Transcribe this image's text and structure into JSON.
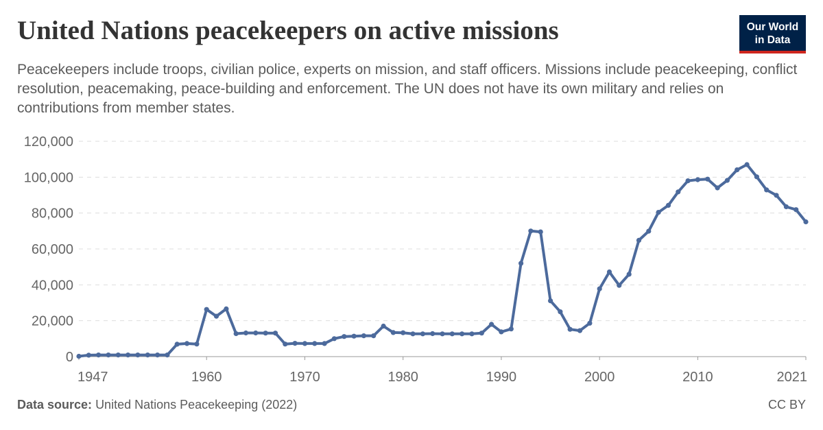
{
  "header": {
    "title": "United Nations peacekeepers on active missions",
    "subtitle": "Peacekeepers include troops, civilian police, experts on mission, and staff officers. Missions include peacekeeping, conflict resolution, peacemaking, peace-building and enforcement. The UN does not have its own military and relies on contributions from member states."
  },
  "logo": {
    "line1": "Our World",
    "line2": "in Data",
    "background_color": "#002147",
    "accent_color": "#ce261e"
  },
  "footer": {
    "source_label": "Data source:",
    "source_text": "United Nations Peacekeeping (2022)",
    "license": "CC BY"
  },
  "chart_data": {
    "type": "line",
    "title": "United Nations peacekeepers on active missions",
    "xlabel": "",
    "ylabel": "",
    "xlim": [
      1947,
      2021
    ],
    "ylim": [
      0,
      120000
    ],
    "yticks": [
      0,
      20000,
      40000,
      60000,
      80000,
      100000,
      120000
    ],
    "ytick_labels": [
      "0",
      "20,000",
      "40,000",
      "60,000",
      "80,000",
      "100,000",
      "120,000"
    ],
    "xticks": [
      1947,
      1960,
      1970,
      1980,
      1990,
      2000,
      2010,
      2021
    ],
    "xtick_labels": [
      "1947",
      "1960",
      "1970",
      "1980",
      "1990",
      "2000",
      "2010",
      "2021"
    ],
    "grid": "horizontal dashed",
    "line_color": "#4c6a9c",
    "series": [
      {
        "x": [
          1947,
          1948,
          1949,
          1950,
          1951,
          1952,
          1953,
          1954,
          1955,
          1956,
          1957,
          1958,
          1959,
          1960,
          1961,
          1962,
          1963,
          1964,
          1965,
          1966,
          1967,
          1968,
          1969,
          1970,
          1971,
          1972,
          1973,
          1974,
          1975,
          1976,
          1977,
          1978,
          1979,
          1980,
          1981,
          1982,
          1983,
          1984,
          1985,
          1986,
          1987,
          1988,
          1989,
          1990,
          1991,
          1992,
          1993,
          1994,
          1995,
          1996,
          1997,
          1998,
          1999,
          2000,
          2001,
          2002,
          2003,
          2004,
          2005,
          2006,
          2007,
          2008,
          2009,
          2010,
          2011,
          2012,
          2013,
          2014,
          2015,
          2016,
          2017,
          2018,
          2019,
          2020,
          2021
        ],
        "values": [
          200,
          800,
          900,
          900,
          900,
          900,
          900,
          900,
          900,
          900,
          6900,
          7300,
          7000,
          26300,
          22500,
          26600,
          12800,
          13200,
          13200,
          13100,
          13100,
          7000,
          7400,
          7300,
          7300,
          7300,
          10000,
          11200,
          11400,
          11600,
          11600,
          17000,
          13400,
          13300,
          12700,
          12700,
          12800,
          12700,
          12700,
          12700,
          12700,
          13100,
          18000,
          13800,
          15400,
          52000,
          70000,
          69500,
          31100,
          25000,
          15200,
          14500,
          18600,
          37800,
          47200,
          39700,
          45900,
          64800,
          69900,
          80400,
          84300,
          91800,
          98000,
          98600,
          98900,
          94000,
          98200,
          104100,
          107000,
          100200,
          92900,
          89900,
          83500,
          81900,
          75100
        ]
      }
    ]
  }
}
